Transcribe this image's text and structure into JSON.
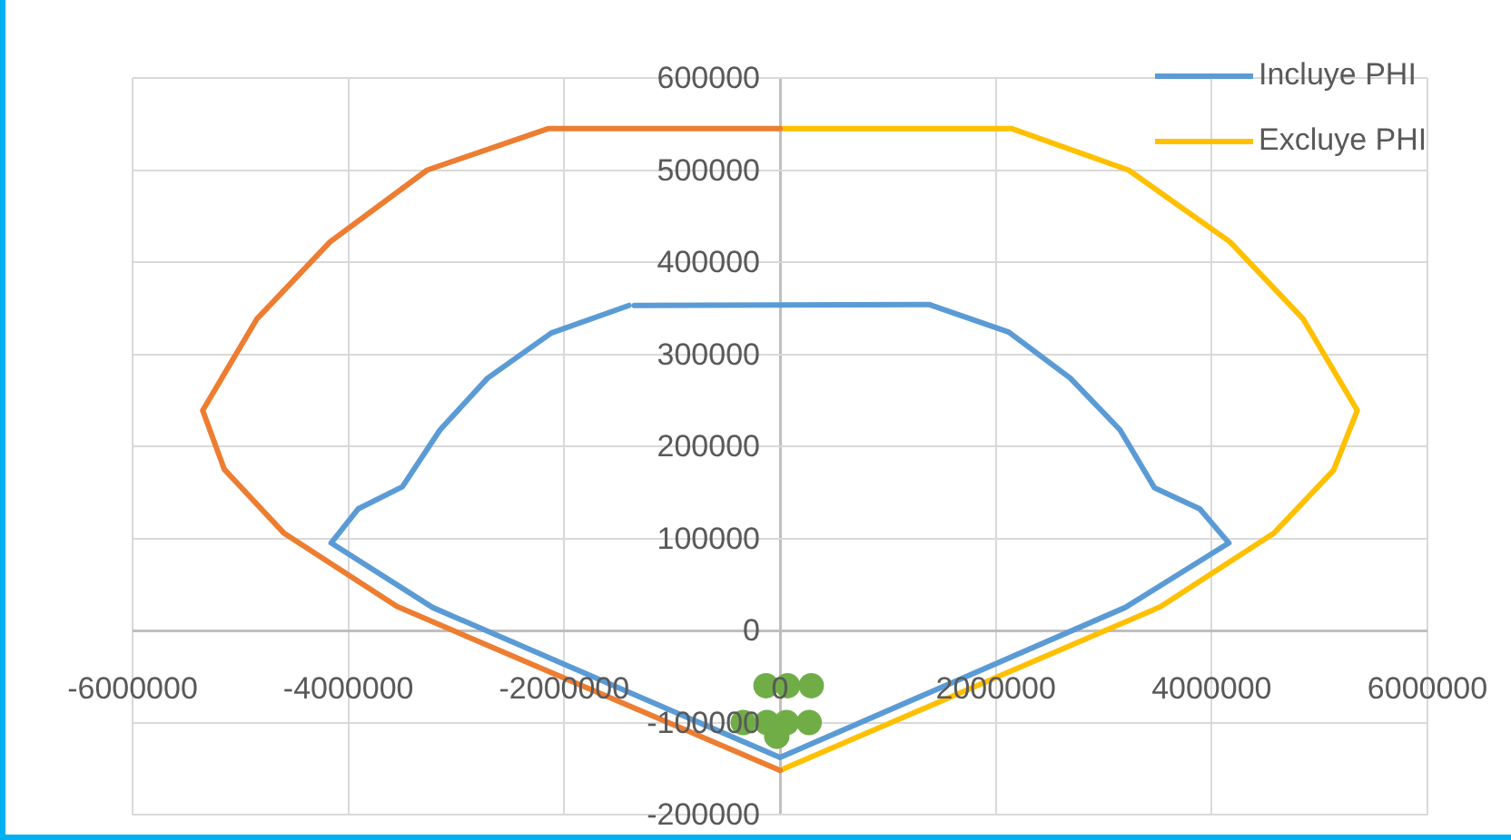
{
  "chart_data": {
    "type": "line",
    "xlim": [
      -6000000,
      6000000
    ],
    "xticks": [
      -6000000,
      -4000000,
      -2000000,
      0,
      2000000,
      4000000,
      6000000
    ],
    "ylim": [
      -200000,
      600000
    ],
    "yticks": [
      -200000,
      -100000,
      0,
      100000,
      200000,
      300000,
      400000,
      500000,
      600000
    ],
    "grid": true,
    "legend": "top right",
    "marker": "none",
    "line_style": "solid",
    "series": [
      {
        "name": "Incluye PHI",
        "color": "#5b9bd5",
        "x": [
          -1400000,
          -2120000,
          -2710000,
          -3150000,
          -3500000,
          -3910000,
          -4160000,
          -3220000,
          0,
          3200000,
          4160000,
          3890000,
          3470000,
          3150000,
          2690000,
          2120000,
          1380000,
          -1350000
        ],
        "values": [
          353000,
          323000,
          274000,
          218000,
          156000,
          132000,
          95000,
          25000,
          -138000,
          25000,
          95000,
          132000,
          155000,
          218000,
          274000,
          324000,
          354000,
          353000
        ]
      },
      {
        "color": "#ed7d31",
        "x": [
          0,
          -2150000,
          -3270000,
          -4170000,
          -4850000,
          -5350000,
          -5150000,
          -4600000,
          -3550000,
          0
        ],
        "values": [
          545000,
          545000,
          500000,
          422000,
          338000,
          239000,
          175000,
          106000,
          26000,
          -152000
        ]
      },
      {
        "name": "Excluye PHI",
        "color": "#ffc000",
        "x": [
          0,
          2150000,
          3230000,
          4170000,
          4850000,
          5350000,
          5130000,
          4580000,
          3530000,
          0
        ],
        "values": [
          545000,
          545000,
          500000,
          422000,
          338000,
          239000,
          174000,
          106000,
          26000,
          -152000
        ]
      },
      {
        "type": "scatter",
        "marker": "circle",
        "color": "#70ad47",
        "x": [
          -130000,
          70000,
          290000,
          -340000,
          -120000,
          60000,
          270000,
          -30000
        ],
        "values": [
          -60000,
          -60000,
          -60000,
          -100000,
          -100000,
          -100000,
          -100000,
          -115000
        ]
      }
    ]
  }
}
